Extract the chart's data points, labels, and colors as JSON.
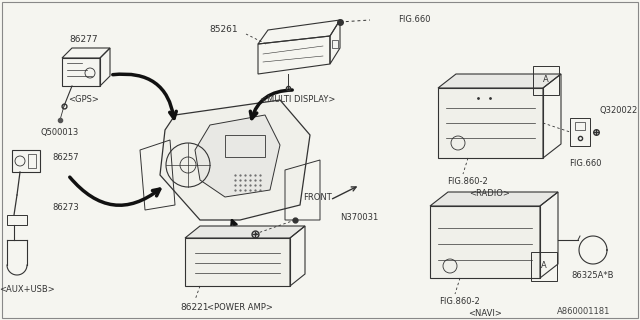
{
  "bg_color": "#f5f5f0",
  "line_color": "#333333",
  "border_color": "#888888",
  "diagram_id": "A860001181",
  "figsize": [
    6.4,
    3.2
  ],
  "dpi": 100,
  "labels": {
    "86277": "86277",
    "gps": "<GPS>",
    "q500013": "Q500013",
    "85261": "85261",
    "fig660a": "FIG.660",
    "multi_display": "<MULTI DISPLAY>",
    "86257": "86257",
    "86273": "86273",
    "aux_usb": "<AUX+USB>",
    "86221": "86221",
    "power_amp": "<POWER AMP>",
    "n370031": "N370031",
    "fig860_radio": "FIG.860-2",
    "radio": "<RADIO>",
    "q320022": "Q320022",
    "fig660b": "FIG.660",
    "fig860_navi": "FIG.860-2",
    "navi": "<NAVI>",
    "86325ab": "86325A*B",
    "front": "FRONT"
  }
}
